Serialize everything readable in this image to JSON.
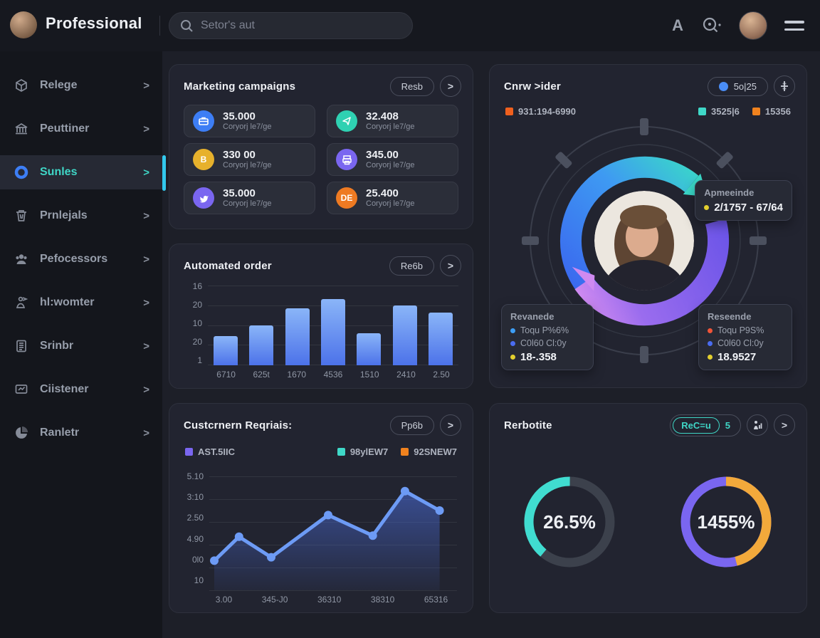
{
  "app": {
    "title": "Professional"
  },
  "ui": {
    "arrow_glyph": ">",
    "chevron_glyph": ">",
    "font_icon": "A",
    "plus_icon": "+"
  },
  "palette": {
    "blue": "#3d7ef5",
    "teal": "#3fd6c6",
    "yellow": "#e7b12c",
    "purple": "#7a66f0",
    "orange": "#ee7a22",
    "card_bg": "#222430",
    "page_bg": "#1d1f28",
    "accent_bar": "#33c9ee"
  },
  "topbar": {
    "search_placeholder": "Setor's aut"
  },
  "sidebar": {
    "items": [
      {
        "label": "Relege"
      },
      {
        "label": "Peuttiner"
      },
      {
        "label": "Sunles",
        "active": true
      },
      {
        "label": "Prnlejals"
      },
      {
        "label": "Pefocessors"
      },
      {
        "label": "hl:womter"
      },
      {
        "label": "Srinbr"
      },
      {
        "label": "Ciistener"
      },
      {
        "label": "Ranletr"
      }
    ]
  },
  "marketing": {
    "title": "Marketing campaigns",
    "action": "Resb",
    "subtitle": "Coryorj le7/ge",
    "tiles": [
      {
        "value": "35.000",
        "label": "Coryorj le7/ge",
        "icon": "briefcase",
        "icon_text": ""
      },
      {
        "value": "32.408",
        "label": "Coryorj le7/ge",
        "icon": "send",
        "icon_text": ""
      },
      {
        "value": "330 00",
        "label": "Coryorj le7/ge",
        "icon": "bitcoin",
        "icon_text": "B"
      },
      {
        "value": "345.00",
        "label": "Coryorj le7/ge",
        "icon": "printer",
        "icon_text": ""
      },
      {
        "value": "35.000",
        "label": "Coryorj le7/ge",
        "icon": "bird",
        "icon_text": ""
      },
      {
        "value": "25.400",
        "label": "Coryorj le7/ge",
        "icon": "letters",
        "icon_text": "DE"
      }
    ]
  },
  "cycle": {
    "title": "Cnrw >ider",
    "badge": "5o|25",
    "legend_left": "931:194-6990",
    "legend_right": [
      {
        "label": "3525|6"
      },
      {
        "label": "15356"
      }
    ],
    "tooltip_top": {
      "title": "Apmeeinde",
      "value": "2/1757 - 67/64"
    },
    "tooltip_left": {
      "title": "Revanede",
      "row1": "Toqu P%6%",
      "row2": "C0l60 Cl:0y",
      "value": "18-.358"
    },
    "tooltip_right": {
      "title": "Reseende",
      "row1": "Toqu P9S%",
      "row2": "C0l60 Cl:0y",
      "value": "18.9527"
    }
  },
  "automated": {
    "title": "Automated order",
    "action": "Re6b"
  },
  "customers": {
    "title": "Custcrnern Reqriais:",
    "action": "Pp6b"
  },
  "reports": {
    "title": "Rerbotite",
    "badge_text": "ReC=u",
    "badge_count": "5"
  },
  "chart_data": [
    {
      "type": "bar",
      "title": "Automated order",
      "yticks": [
        "16",
        "20",
        "10",
        "20",
        "1"
      ],
      "categories": [
        "6710",
        "625t",
        "1670",
        "4536",
        "1510",
        "2410",
        "2.50"
      ],
      "values": [
        37,
        50,
        71,
        83,
        40,
        75,
        66
      ],
      "ylim": [
        0,
        100
      ],
      "bar_color": "#5b84ee",
      "grid": true
    },
    {
      "type": "area",
      "title": "Custcrnern Reqriais:",
      "legend": [
        {
          "label": "AST.5IIC",
          "color": "#7a66f0"
        },
        {
          "label": "98ylEW7",
          "color": "#3fd8c8"
        },
        {
          "label": "92SNEW7",
          "color": "#f0821e"
        }
      ],
      "yticks": [
        "5.10",
        "3:10",
        "2.50",
        "4.90",
        "0l0",
        "10"
      ],
      "xticks": [
        "3.00",
        "345-J0",
        "36310",
        "38310",
        "65316"
      ],
      "line_color": "#6d9bf5",
      "points": [
        {
          "x": 0.02,
          "y": 0.26
        },
        {
          "x": 0.12,
          "y": 0.47
        },
        {
          "x": 0.25,
          "y": 0.29
        },
        {
          "x": 0.48,
          "y": 0.66
        },
        {
          "x": 0.66,
          "y": 0.48
        },
        {
          "x": 0.79,
          "y": 0.87
        },
        {
          "x": 0.93,
          "y": 0.7
        }
      ]
    },
    {
      "type": "pie",
      "label": "26.5%",
      "segments": [
        {
          "value": 39,
          "color": "#40dcd0",
          "start_deg": 220
        },
        {
          "value": 61,
          "color": "#3c414c"
        }
      ]
    },
    {
      "type": "pie",
      "label": "1455%",
      "segments": [
        {
          "value": 46,
          "color": "#f2a93b",
          "start_deg": 0
        },
        {
          "value": 54,
          "color": "#7a66f0"
        }
      ]
    }
  ]
}
